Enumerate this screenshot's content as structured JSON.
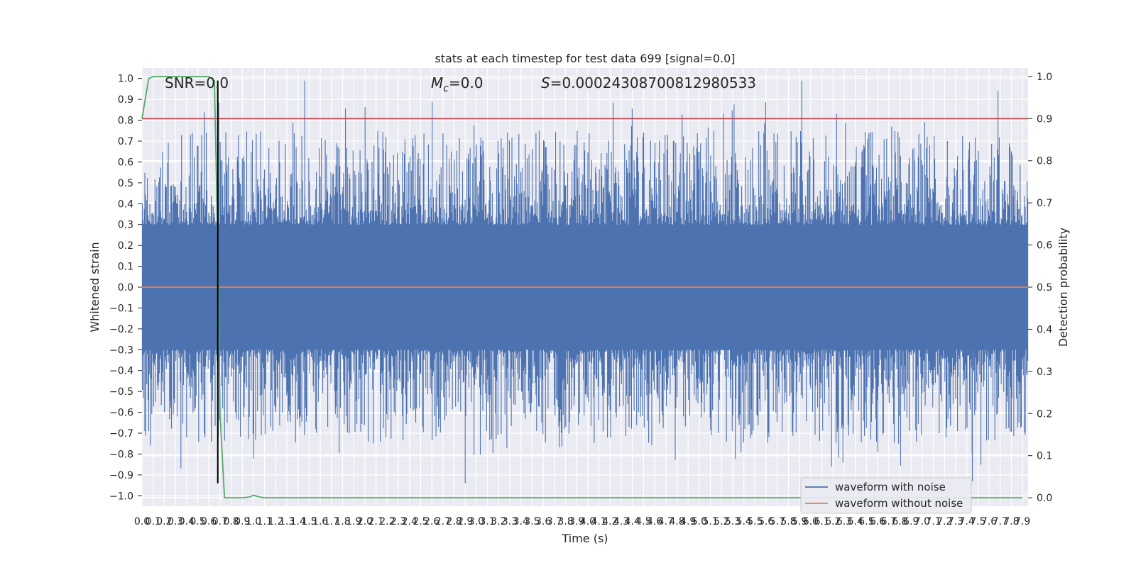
{
  "chart_data": {
    "type": "line",
    "title": "stats at each timestep for test data 699 [signal=0.0]",
    "xlabel": "Time (s)",
    "ylabel": "Whitened strain",
    "y2label": "Detection probability",
    "xlim": [
      0.0,
      7.95
    ],
    "ylim": [
      -1.05,
      1.05
    ],
    "y2lim": [
      -0.02,
      1.02
    ],
    "x_ticks": [
      "0.0",
      "0.1",
      "0.2",
      "0.3",
      "0.4",
      "0.5",
      "0.6",
      "0.7",
      "0.8",
      "0.9",
      "1.0",
      "1.1",
      "1.2",
      "1.3",
      "1.4",
      "1.5",
      "1.6",
      "1.7",
      "1.8",
      "1.9",
      "2.0",
      "2.1",
      "2.2",
      "2.3",
      "2.4",
      "2.5",
      "2.6",
      "2.7",
      "2.8",
      "2.9",
      "3.0",
      "3.1",
      "3.2",
      "3.3",
      "3.4",
      "3.5",
      "3.6",
      "3.7",
      "3.8",
      "3.9",
      "4.0",
      "4.1",
      "4.2",
      "4.3",
      "4.4",
      "4.5",
      "4.6",
      "4.7",
      "4.8",
      "4.9",
      "5.0",
      "5.1",
      "5.2",
      "5.3",
      "5.4",
      "5.5",
      "5.6",
      "5.7",
      "5.8",
      "5.9",
      "6.0",
      "6.1",
      "6.2",
      "6.3",
      "6.4",
      "6.5",
      "6.6",
      "6.7",
      "6.8",
      "6.9",
      "7.0",
      "7.1",
      "7.2",
      "7.3",
      "7.4",
      "7.5",
      "7.6",
      "7.7",
      "7.8",
      "7.9"
    ],
    "y_ticks": [
      "1.0",
      "0.9",
      "0.8",
      "0.7",
      "0.6",
      "0.5",
      "0.4",
      "0.3",
      "0.2",
      "0.1",
      "0.0",
      "−0.1",
      "−0.2",
      "−0.3",
      "−0.4",
      "−0.5",
      "−0.6",
      "−0.7",
      "−0.8",
      "−0.9",
      "−1.0"
    ],
    "y2_ticks": [
      "1.0",
      "0.9",
      "0.8",
      "0.7",
      "0.6",
      "0.5",
      "0.4",
      "0.3",
      "0.2",
      "0.1",
      "0.0"
    ],
    "annotations": {
      "snr": "SNR=0.0",
      "mc_symbol": "M",
      "mc_subscript": "c",
      "mc_value": "=0.0",
      "s_symbol": "S",
      "s_value": "=0.00024308700812980533"
    },
    "series": [
      {
        "name": "waveform with noise",
        "color": "#4c72b0",
        "description": "noise, roughly ±0.4 with spikes to about 1.0 and −0.9",
        "max_spike": 1.0,
        "min_spike": -0.94
      },
      {
        "name": "waveform without noise",
        "color": "#dd8452",
        "values_constant": 0.0
      },
      {
        "color": "#55a868",
        "axis": "right",
        "x": [
          0.0,
          0.06,
          0.1,
          0.2,
          0.3,
          0.5,
          0.6,
          0.65,
          0.68,
          0.7,
          0.74,
          0.8,
          0.9,
          0.97,
          1.0,
          1.05,
          1.1,
          1.5,
          2.0,
          3.0,
          4.0,
          5.0,
          6.0,
          7.0,
          7.9
        ],
        "y": [
          0.9,
          0.995,
          1.0,
          1.0,
          1.0,
          1.0,
          1.0,
          0.99,
          0.6,
          0.2,
          0.0,
          0.0,
          0.0,
          0.002,
          0.006,
          0.002,
          0.0,
          0.0,
          0.0,
          0.0,
          0.0,
          0.0,
          0.0,
          0.0,
          0.0
        ]
      },
      {
        "color": "#c44e52",
        "axis": "right",
        "values_constant": 0.9
      },
      {
        "color": "#000000",
        "type": "vline",
        "x": 0.68,
        "y_range": [
          -0.94,
          0.99
        ]
      }
    ],
    "legend_placement": "bottom-right",
    "grid": true,
    "colors": {
      "background": "#eaeaf2",
      "grid": "#ffffff"
    }
  }
}
